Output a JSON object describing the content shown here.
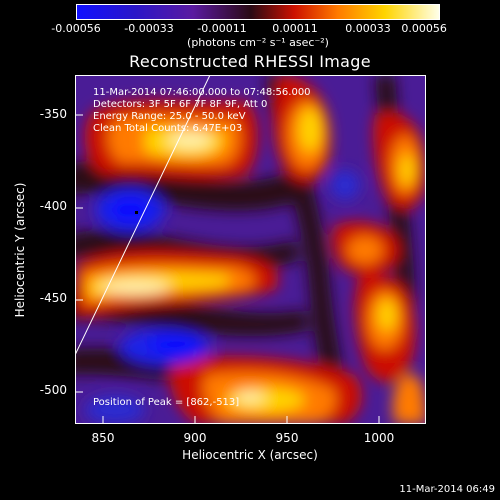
{
  "colorbar": {
    "ticks": [
      "-0.00056",
      "-0.00033",
      "-0.00011",
      "0.00011",
      "0.00033",
      "0.00056"
    ],
    "units": "(photons cm⁻² s⁻¹ asec⁻²)",
    "colors": [
      "#1010ff",
      "#2a16c8",
      "#5a1aa0",
      "#2a0a14",
      "#cc1100",
      "#ff7a00",
      "#ffd400",
      "#ffffe8"
    ]
  },
  "title": "Reconstructed RHESSI Image",
  "axes": {
    "y_title": "Heliocentric Y (arcsec)",
    "x_title": "Heliocentric X (arcsec)",
    "y_ticks": [
      "-350",
      "-400",
      "-450",
      "-500"
    ],
    "x_ticks": [
      "850",
      "900",
      "950",
      "1000"
    ]
  },
  "annotations": {
    "time": "11-Mar-2014 07:46:00.000 to 07:48:56.000",
    "detectors": "Detectors: 3F 5F 6F 7F 8F 9F, Att 0",
    "energy": "Energy Range: 25.0 - 50.0 keV",
    "clean": "Clean    Total Counts: 6.47E+03",
    "peak": "Position of Peak = [862,-513]"
  },
  "timestamp": "11-Mar-2014 06:49"
}
